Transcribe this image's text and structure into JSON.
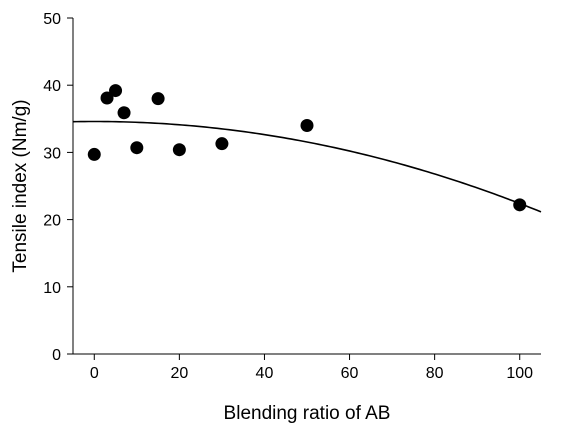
{
  "chart_data": {
    "type": "scatter",
    "title": "",
    "xlabel": "Blending ratio of AB",
    "ylabel": "Tensile index (Nm/g)",
    "xlim": [
      -5,
      105
    ],
    "ylim": [
      0,
      50
    ],
    "x_ticks": [
      0,
      20,
      40,
      60,
      80,
      100
    ],
    "y_ticks": [
      0,
      10,
      20,
      30,
      40,
      50
    ],
    "x_tick_labels": [
      "0",
      "20",
      "40",
      "60",
      "80",
      "100"
    ],
    "y_tick_labels": [
      "0",
      "10",
      "20",
      "30",
      "40",
      "50"
    ],
    "grid": false,
    "legend": "none",
    "colors": {
      "marker": "#000000",
      "curve": "#000000",
      "axes": "#000000"
    },
    "series": [
      {
        "type": "scatter",
        "x": [
          0,
          3,
          5,
          7,
          10,
          15,
          20,
          30,
          50,
          100
        ],
        "y": [
          29.7,
          38.1,
          39.2,
          35.9,
          30.7,
          38.0,
          30.4,
          31.3,
          34.0,
          22.2
        ]
      },
      {
        "type": "line",
        "fit": "quadratic",
        "x_range": [
          -5,
          105
        ],
        "coefficients": [
          34.6,
          0.0,
          -0.00122
        ]
      }
    ]
  }
}
